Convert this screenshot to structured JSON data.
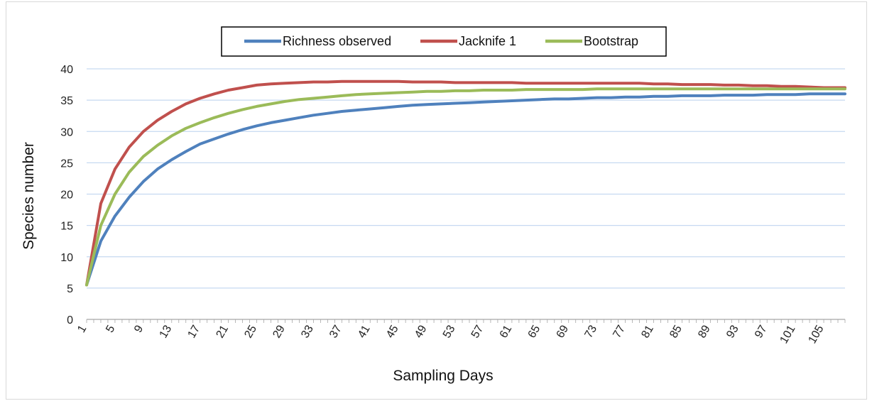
{
  "chart_data": {
    "type": "line",
    "xlabel": "Sampling Days",
    "ylabel": "Species number",
    "ylim": [
      0,
      40
    ],
    "yticks": [
      "0",
      "5",
      "10",
      "15",
      "20",
      "25",
      "30",
      "35",
      "40"
    ],
    "xticks": [
      "1",
      "5",
      "9",
      "13",
      "17",
      "21",
      "25",
      "29",
      "33",
      "37",
      "41",
      "45",
      "49",
      "53",
      "57",
      "61",
      "65",
      "69",
      "73",
      "77",
      "81",
      "85",
      "89",
      "93",
      "97",
      "101",
      "105"
    ],
    "grid": true,
    "legend_position": "top-center",
    "x": [
      1,
      3,
      5,
      7,
      9,
      11,
      13,
      15,
      17,
      19,
      21,
      23,
      25,
      27,
      29,
      31,
      33,
      35,
      37,
      39,
      41,
      43,
      45,
      47,
      49,
      51,
      53,
      55,
      57,
      59,
      61,
      63,
      65,
      67,
      69,
      71,
      73,
      75,
      77,
      79,
      81,
      83,
      85,
      87,
      89,
      91,
      93,
      95,
      97,
      99,
      101,
      103,
      105,
      107,
      108
    ],
    "series": [
      {
        "name": "Richness observed",
        "color": "#4f81bd",
        "values": [
          5.5,
          12.5,
          16.5,
          19.5,
          22.0,
          24.0,
          25.5,
          26.8,
          28.0,
          28.8,
          29.6,
          30.3,
          30.9,
          31.4,
          31.8,
          32.2,
          32.6,
          32.9,
          33.2,
          33.4,
          33.6,
          33.8,
          34.0,
          34.2,
          34.3,
          34.4,
          34.5,
          34.6,
          34.7,
          34.8,
          34.9,
          35.0,
          35.1,
          35.2,
          35.2,
          35.3,
          35.4,
          35.4,
          35.5,
          35.5,
          35.6,
          35.6,
          35.7,
          35.7,
          35.7,
          35.8,
          35.8,
          35.8,
          35.9,
          35.9,
          35.9,
          36.0,
          36.0,
          36.0,
          36.0
        ]
      },
      {
        "name": "Jacknife 1",
        "color": "#c0504d",
        "values": [
          5.5,
          18.5,
          24.0,
          27.5,
          30.0,
          31.8,
          33.2,
          34.4,
          35.3,
          36.0,
          36.6,
          37.0,
          37.4,
          37.6,
          37.7,
          37.8,
          37.9,
          37.9,
          38.0,
          38.0,
          38.0,
          38.0,
          38.0,
          37.9,
          37.9,
          37.9,
          37.8,
          37.8,
          37.8,
          37.8,
          37.8,
          37.7,
          37.7,
          37.7,
          37.7,
          37.7,
          37.7,
          37.7,
          37.7,
          37.7,
          37.6,
          37.6,
          37.5,
          37.5,
          37.5,
          37.4,
          37.4,
          37.3,
          37.3,
          37.2,
          37.2,
          37.1,
          37.0,
          37.0,
          37.0
        ]
      },
      {
        "name": "Bootstrap",
        "color": "#9bbb59",
        "values": [
          5.5,
          15.0,
          20.0,
          23.5,
          26.0,
          27.8,
          29.3,
          30.5,
          31.4,
          32.2,
          32.9,
          33.5,
          34.0,
          34.4,
          34.8,
          35.1,
          35.3,
          35.5,
          35.7,
          35.9,
          36.0,
          36.1,
          36.2,
          36.3,
          36.4,
          36.4,
          36.5,
          36.5,
          36.6,
          36.6,
          36.6,
          36.7,
          36.7,
          36.7,
          36.7,
          36.7,
          36.8,
          36.8,
          36.8,
          36.8,
          36.8,
          36.8,
          36.8,
          36.8,
          36.8,
          36.8,
          36.8,
          36.8,
          36.8,
          36.8,
          36.8,
          36.8,
          36.8,
          36.8,
          36.8
        ]
      }
    ]
  }
}
